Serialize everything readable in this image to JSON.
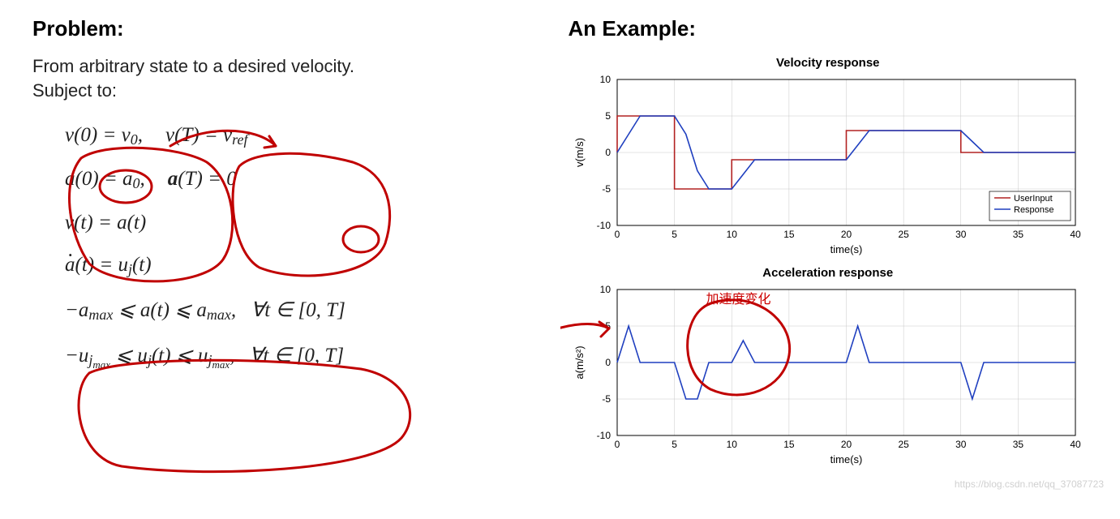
{
  "left": {
    "heading": "Problem:",
    "line1": "From arbitrary state to a desired velocity.",
    "line2": "Subject to:",
    "eq1a": "v(0) = v₀,",
    "eq1b": "v(T) = v_ref",
    "eq2a": "a(0) = a₀,",
    "eq2b": "a(T) = 0",
    "eq3": "v̇(t) = a(t)",
    "eq4": "ȧ(t) = uⱼ(t)",
    "eq5": "−a_max ⩽ a(t) ⩽ a_max,",
    "eq5t": "∀t ∈ [0, T]",
    "eq6": "−uⱼ_max ⩽ uⱼ(t) ⩽ uⱼ_max,",
    "eq6t": "∀t ∈ [0, T]"
  },
  "right": {
    "heading": "An Example:",
    "red_annotation": "加速度变化",
    "watermark": "https://blog.csdn.net/qq_37087723"
  },
  "velocity_chart": {
    "type": "line",
    "title": "Velocity response",
    "xlabel": "time(s)",
    "ylabel": "v(m/s)",
    "xlim": [
      0,
      40
    ],
    "xtick_step": 5,
    "ylim": [
      -10,
      10
    ],
    "ytick_step": 5,
    "background_color": "#ffffff",
    "grid_color": "#c8c8c8",
    "series": [
      {
        "name": "UserInput",
        "color": "#b22222",
        "linewidth": 1.6,
        "x": [
          0,
          0,
          5,
          5,
          10,
          10,
          12,
          12,
          20,
          20,
          30,
          30,
          40
        ],
        "y": [
          0,
          5,
          5,
          -5,
          -5,
          -1,
          -1,
          -1,
          -1,
          3,
          3,
          0,
          0
        ]
      },
      {
        "name": "Response",
        "color": "#1f3fbf",
        "linewidth": 1.6,
        "x": [
          0,
          1,
          2,
          5,
          6,
          7,
          8,
          10,
          11,
          12,
          13,
          20,
          21,
          22,
          30,
          31,
          32,
          40
        ],
        "y": [
          0,
          2.5,
          5,
          5,
          2.5,
          -2.5,
          -5,
          -5,
          -3,
          -1,
          -1,
          -1,
          1,
          3,
          3,
          1.5,
          0,
          0
        ]
      }
    ],
    "legend": {
      "position": "bottom-right",
      "labels": [
        "UserInput",
        "Response"
      ]
    }
  },
  "accel_chart": {
    "type": "line",
    "title": "Acceleration response",
    "xlabel": "time(s)",
    "ylabel": "a(m/s²)",
    "xlim": [
      0,
      40
    ],
    "xtick_step": 5,
    "ylim": [
      -10,
      10
    ],
    "ytick_step": 5,
    "background_color": "#ffffff",
    "grid_color": "#c8c8c8",
    "series": [
      {
        "name": "Response",
        "color": "#1f3fbf",
        "linewidth": 1.6,
        "x": [
          0,
          1,
          2,
          5,
          6,
          7,
          8,
          10,
          11,
          12,
          12.5,
          20,
          21,
          22,
          30,
          31,
          32,
          40
        ],
        "y": [
          0,
          5,
          0,
          0,
          -5,
          -5,
          0,
          0,
          3,
          0,
          0,
          0,
          5,
          0,
          0,
          -5,
          0,
          0
        ]
      }
    ]
  },
  "annotations": {
    "ink_color": "#c00000",
    "ink_width": 3
  }
}
